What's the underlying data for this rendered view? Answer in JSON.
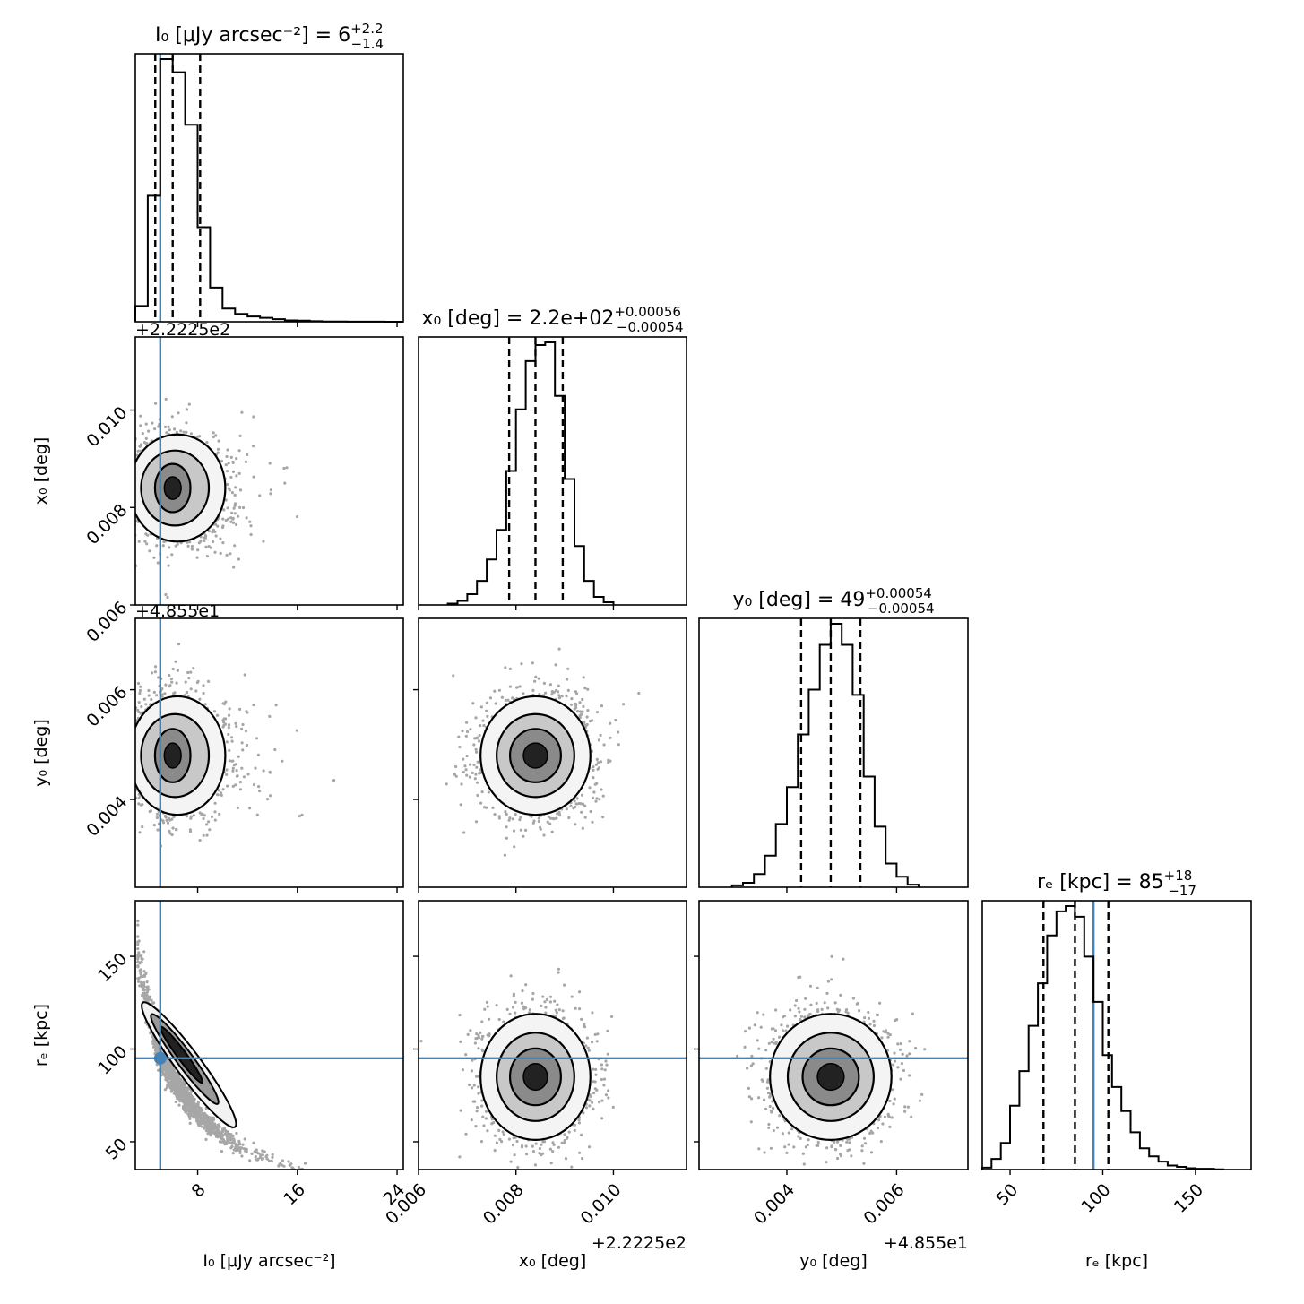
{
  "chart_data": {
    "type": "corner",
    "truth_color": "#4682b4",
    "parameters": [
      {
        "key": "I0",
        "axis_label": "I₀ [μJy arcsec⁻²]",
        "range": [
          3,
          24.5
        ],
        "ticks": [
          8,
          16,
          24
        ],
        "offset_text": ""
      },
      {
        "key": "x0",
        "axis_label": "x₀ [deg]",
        "range": [
          222.256,
          222.2615
        ],
        "ticks": [
          222.256,
          222.258,
          222.26
        ],
        "tick_labels": [
          "0.006",
          "0.008",
          "0.010"
        ],
        "offset_text": "+2.2225e2"
      },
      {
        "key": "y0",
        "axis_label": "y₀ [deg]",
        "range": [
          48.5524,
          48.5573
        ],
        "ticks": [
          48.554,
          48.556
        ],
        "tick_labels": [
          "0.004",
          "0.006"
        ],
        "offset_text": "+4.855e1"
      },
      {
        "key": "re",
        "axis_label": "rₑ [kpc]",
        "range": [
          35,
          180
        ],
        "ticks": [
          50,
          100,
          150
        ],
        "offset_text": ""
      }
    ],
    "y_axis_ticks": {
      "x0": {
        "ticks": [
          222.256,
          222.258,
          222.26
        ],
        "tick_labels": [
          "0.006",
          "0.008",
          "0.010"
        ],
        "offset_text": "+2.2225e2"
      },
      "y0": {
        "ticks": [
          48.554,
          48.556
        ],
        "tick_labels": [
          "0.004",
          "0.006"
        ],
        "offset_text": "+4.855e1"
      },
      "re": {
        "ticks": [
          50,
          100,
          150
        ]
      }
    },
    "titles": [
      {
        "param": "I0",
        "label": "I₀ [μJy arcsec⁻²] = ",
        "value": "6",
        "plus": "+2.2",
        "minus": "−1.4"
      },
      {
        "param": "x0",
        "label": "x₀ [deg] = ",
        "value": "2.2e+02",
        "plus": "+0.00056",
        "minus": "−0.00054"
      },
      {
        "param": "y0",
        "label": "y₀ [deg] = ",
        "value": "49",
        "plus": "+0.00054",
        "minus": "−0.00054"
      },
      {
        "param": "re",
        "label": "rₑ [kpc] = ",
        "value": "85",
        "plus": "+18",
        "minus": "−17"
      }
    ],
    "truths": {
      "I0": 5.0,
      "x0": null,
      "y0": null,
      "re": 95
    },
    "quantiles": {
      "I0": [
        4.6,
        6.0,
        8.2
      ],
      "x0": [
        222.25786,
        222.2584,
        222.25896
      ],
      "y0": [
        48.55426,
        48.5548,
        48.55534
      ],
      "re": [
        68,
        85,
        103
      ]
    },
    "histograms": {
      "I0": {
        "edges": [
          3,
          4,
          5,
          6,
          7,
          8,
          9,
          10,
          11,
          12,
          13,
          14,
          15,
          16,
          17,
          18,
          19,
          20,
          21,
          22,
          23,
          24.5
        ],
        "counts": [
          6,
          48,
          100,
          95,
          75,
          36,
          13,
          5,
          3,
          2,
          1.5,
          1,
          0.5,
          0.4,
          0.2,
          0.1,
          0.1,
          0.05,
          0.05,
          0.02,
          0.01
        ]
      },
      "x0": {
        "edges": [
          222.2566,
          222.2568,
          222.257,
          222.2572,
          222.2574,
          222.2576,
          222.2578,
          222.258,
          222.2582,
          222.2584,
          222.2586,
          222.2588,
          222.259,
          222.2592,
          222.2594,
          222.2596,
          222.2598,
          222.26
        ],
        "counts": [
          0.5,
          1.5,
          4,
          9,
          17,
          28,
          50,
          73,
          91,
          97,
          98,
          78,
          47,
          22,
          9,
          3,
          1
        ]
      },
      "y0": {
        "edges": [
          48.553,
          48.5532,
          48.5534,
          48.5536,
          48.5538,
          48.554,
          48.5542,
          48.5544,
          48.5546,
          48.5548,
          48.555,
          48.5552,
          48.5554,
          48.5556,
          48.5558,
          48.556,
          48.5562,
          48.5564
        ],
        "counts": [
          0.7,
          1.7,
          5,
          12,
          24,
          38,
          58,
          75,
          92,
          100,
          92,
          73,
          42,
          23,
          9,
          4,
          1
        ]
      },
      "re": {
        "edges": [
          35,
          40,
          45,
          50,
          55,
          60,
          65,
          70,
          75,
          80,
          85,
          90,
          95,
          100,
          105,
          110,
          115,
          120,
          125,
          130,
          135,
          140,
          145,
          150,
          160,
          165
        ],
        "counts": [
          0.7,
          4,
          10,
          24,
          37,
          54,
          70,
          88,
          97,
          99,
          95,
          80,
          63,
          43,
          31,
          22,
          14,
          8,
          5,
          3,
          1.5,
          1,
          0.5,
          0.3,
          0.1
        ]
      }
    },
    "pairs": [
      {
        "x": "I0",
        "y": "x0",
        "center": [
          6.0,
          222.2584
        ],
        "spread": [
          1.5,
          0.00055
        ],
        "skew": 0.5,
        "rho": -0.05
      },
      {
        "x": "I0",
        "y": "y0",
        "center": [
          6.0,
          48.5548
        ],
        "spread": [
          1.5,
          0.00054
        ],
        "skew": 0.5,
        "rho": -0.05
      },
      {
        "x": "I0",
        "y": "re",
        "center": [
          6.0,
          85
        ],
        "spread": [
          1.5,
          17
        ],
        "skew": 0.4,
        "rho": -0.93
      },
      {
        "x": "x0",
        "y": "y0",
        "center": [
          222.2584,
          48.5548
        ],
        "spread": [
          0.00055,
          0.00054
        ],
        "skew": 0,
        "rho": 0
      },
      {
        "x": "x0",
        "y": "re",
        "center": [
          222.2584,
          85
        ],
        "spread": [
          0.00055,
          17
        ],
        "skew": 0,
        "rho": 0
      },
      {
        "x": "y0",
        "y": "re",
        "center": [
          48.5548,
          85
        ],
        "spread": [
          0.00054,
          17
        ],
        "skew": 0,
        "rho": 0
      }
    ]
  }
}
